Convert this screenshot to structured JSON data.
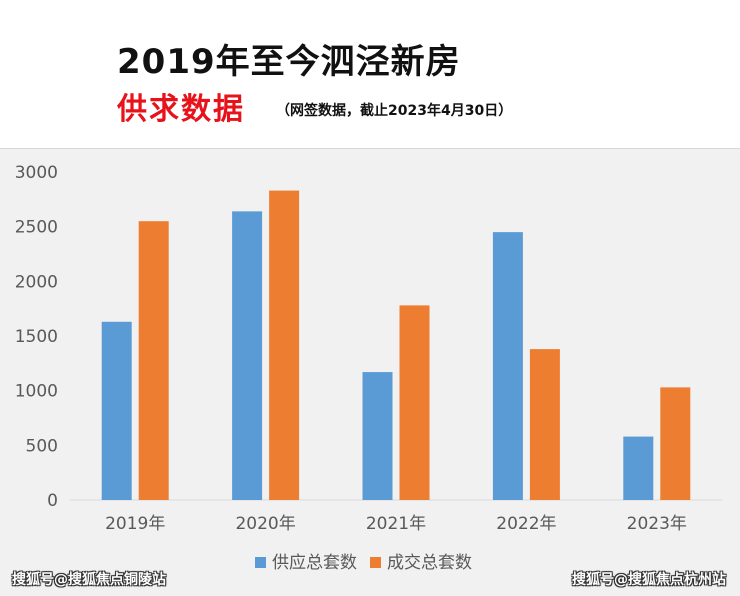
{
  "header": {
    "title": "2019年至今泗泾新房",
    "subtitle": "供求数据",
    "note": "（网签数据，截止2023年4月30日）"
  },
  "watermarks": {
    "left": "搜狐号@搜狐焦点铜陵站",
    "right": "搜狐号@搜狐焦点杭州站"
  },
  "colors": {
    "supply": "#5b9bd5",
    "deal": "#ed7d31",
    "axis_text": "#595959",
    "axis_line": "#d9d9d9"
  },
  "chart_data": {
    "type": "bar",
    "categories": [
      "2019年",
      "2020年",
      "2021年",
      "2022年",
      "2023年"
    ],
    "series": [
      {
        "name": "供应总套数",
        "values": [
          1630,
          2640,
          1170,
          2450,
          580
        ]
      },
      {
        "name": "成交总套数",
        "values": [
          2550,
          2830,
          1780,
          1380,
          1030
        ]
      }
    ],
    "ylim": [
      0,
      3000
    ],
    "yticks": [
      0,
      500,
      1000,
      1500,
      2000,
      2500,
      3000
    ],
    "grid": false,
    "legend_position": "bottom"
  }
}
